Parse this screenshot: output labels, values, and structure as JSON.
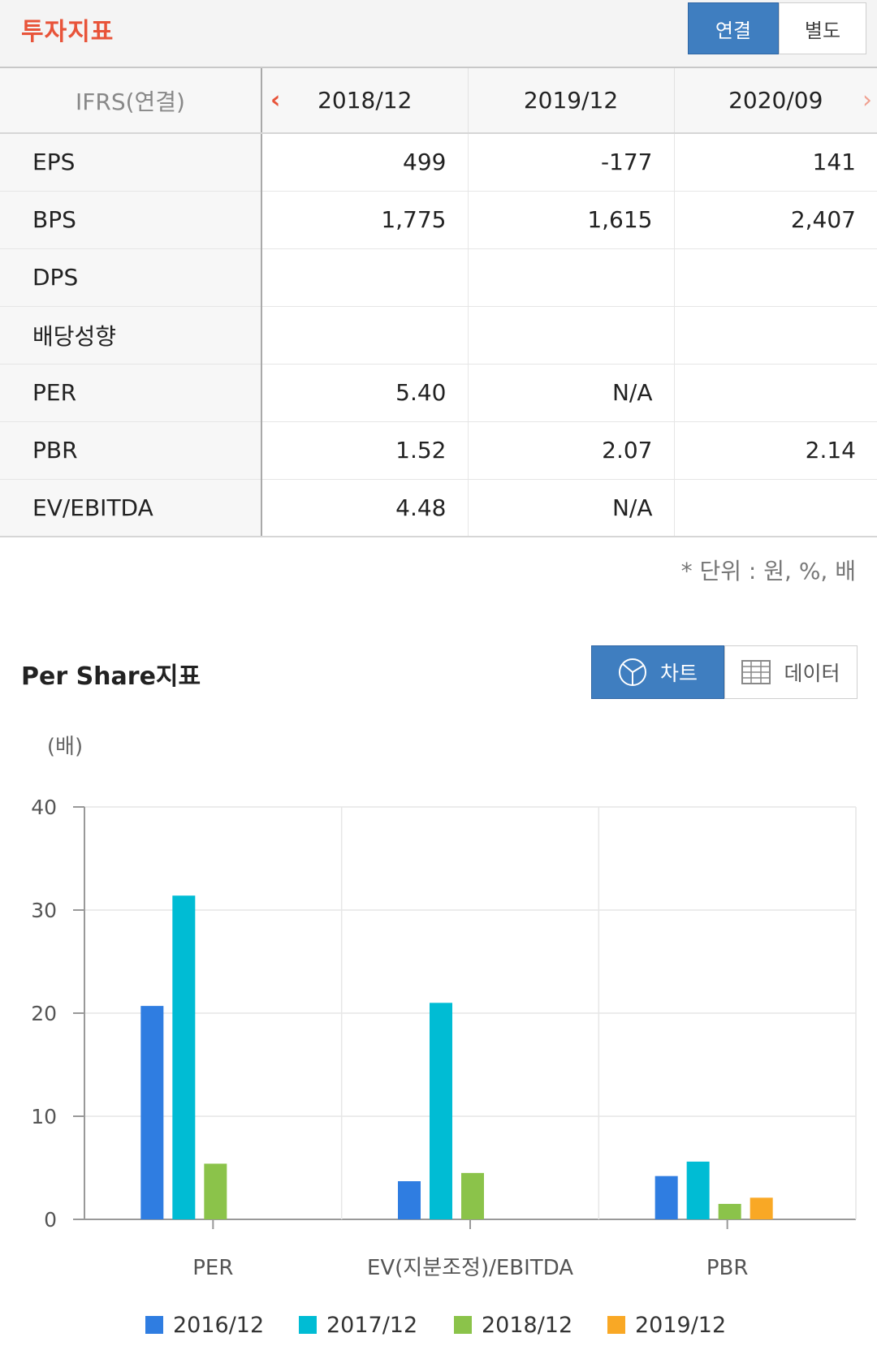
{
  "header": {
    "title": "투자지표",
    "toggle_consolidated": "연결",
    "toggle_separate": "별도"
  },
  "table": {
    "corner_label": "IFRS(연결)",
    "prev_icon": "chevron-left-icon",
    "next_icon": "chevron-right-icon",
    "periods": [
      "2018/12",
      "2019/12",
      "2020/09"
    ],
    "rows": [
      {
        "label": "EPS",
        "values": [
          "499",
          "-177",
          "141"
        ]
      },
      {
        "label": "BPS",
        "values": [
          "1,775",
          "1,615",
          "2,407"
        ]
      },
      {
        "label": "DPS",
        "values": [
          "",
          "",
          ""
        ]
      },
      {
        "label": "배당성향",
        "values": [
          "",
          "",
          ""
        ]
      },
      {
        "label": "PER",
        "values": [
          "5.40",
          "N/A",
          ""
        ]
      },
      {
        "label": "PBR",
        "values": [
          "1.52",
          "2.07",
          "2.14"
        ]
      },
      {
        "label": "EV/EBITDA",
        "values": [
          "4.48",
          "N/A",
          ""
        ]
      }
    ],
    "negative_color": "#d93a2b",
    "unit_note": "* 단위 : 원, %, 배"
  },
  "section": {
    "title": "Per Share지표",
    "chart_button": "차트",
    "chart_icon": "pie-chart-icon",
    "data_button": "데이터",
    "data_icon": "grid-table-icon"
  },
  "chart_data": {
    "type": "bar",
    "unit_label": "(배)",
    "categories": [
      "PER",
      "EV(지분조정)/EBITDA",
      "PBR"
    ],
    "series": [
      {
        "name": "2016/12",
        "color": "#2f7de1",
        "values": [
          20.7,
          3.7,
          4.2
        ]
      },
      {
        "name": "2017/12",
        "color": "#00bcd4",
        "values": [
          31.4,
          21.0,
          5.6
        ]
      },
      {
        "name": "2018/12",
        "color": "#8bc34a",
        "values": [
          5.4,
          4.5,
          1.5
        ]
      },
      {
        "name": "2019/12",
        "color": "#f9a825",
        "values": [
          null,
          null,
          2.1
        ]
      }
    ],
    "ylim": [
      0,
      40
    ],
    "yticks": [
      0,
      10,
      20,
      30,
      40
    ],
    "grid": true,
    "legend_position": "bottom"
  },
  "colors": {
    "accent": "#e8543a",
    "primary_button": "#3f7ec0"
  }
}
